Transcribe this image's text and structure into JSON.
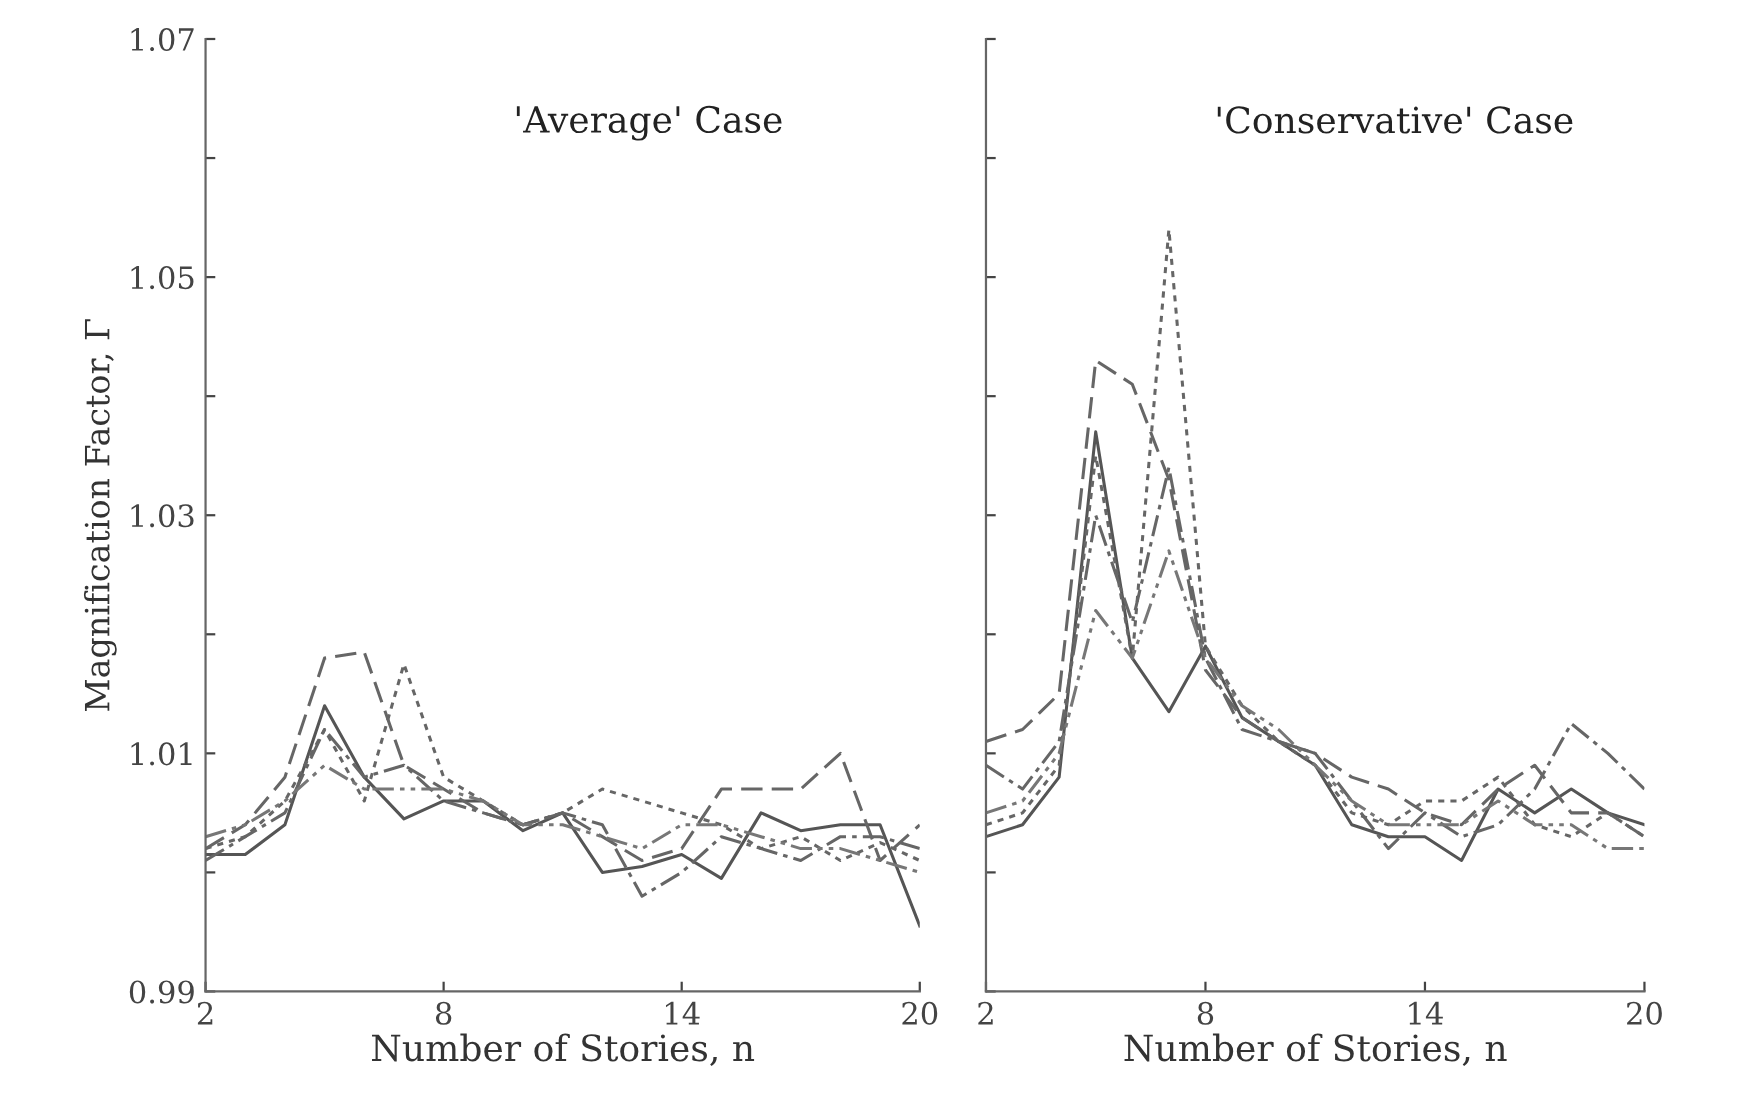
{
  "chart_data": [
    {
      "type": "line",
      "ylabel": "Magnification Factor, Γ",
      "xlabel": "Number of Stories, n",
      "annotations": [
        "'Average' Case"
      ],
      "x": [
        2,
        3,
        4,
        5,
        6,
        7,
        8,
        9,
        10,
        11,
        12,
        13,
        14,
        15,
        16,
        17,
        18,
        19,
        20
      ],
      "xlim": [
        2,
        20
      ],
      "xticks": [
        2,
        8,
        14,
        20
      ],
      "ylim": [
        0.99,
        1.07
      ],
      "yticks": [
        0.99,
        {
          "value": 1.0,
          "label": null
        },
        1.01,
        {
          "value": 1.02,
          "label": null
        },
        1.03,
        {
          "value": 1.04,
          "label": null
        },
        1.05,
        {
          "value": 1.06,
          "label": null
        },
        1.07
      ],
      "grid": false,
      "marker": "none",
      "series": [
        {
          "color": "#555555",
          "line_style": "solid",
          "values": [
            1.0015,
            1.0015,
            1.004,
            1.014,
            1.008,
            1.0045,
            1.006,
            1.006,
            1.0035,
            1.005,
            1.0,
            1.0005,
            1.0015,
            0.9995,
            1.005,
            1.0035,
            1.004,
            1.004,
            0.9955
          ]
        },
        {
          "color": "#666666",
          "line_style": "dotted",
          "values": [
            1.002,
            1.003,
            1.006,
            1.012,
            1.006,
            1.0175,
            1.008,
            1.006,
            1.004,
            1.005,
            1.007,
            1.006,
            1.005,
            1.004,
            1.002,
            1.003,
            1.001,
            1.0025,
            1.001
          ]
        },
        {
          "color": "#666666",
          "line_style": "dashed",
          "values": [
            1.002,
            1.004,
            1.008,
            1.018,
            1.0185,
            1.009,
            1.007,
            1.005,
            1.004,
            1.005,
            1.003,
            1.001,
            1.002,
            1.007,
            1.007,
            1.007,
            1.01,
            1.001,
            1.004
          ]
        },
        {
          "color": "#666666",
          "line_style": "dashdot",
          "values": [
            1.001,
            1.003,
            1.005,
            1.012,
            1.008,
            1.009,
            1.006,
            1.005,
            1.004,
            1.005,
            1.004,
            0.998,
            1.0,
            1.003,
            1.002,
            1.001,
            1.003,
            1.003,
            1.002
          ]
        },
        {
          "color": "#777777",
          "line_style": "dashdotdot",
          "values": [
            1.003,
            1.004,
            1.006,
            1.009,
            1.007,
            1.007,
            1.007,
            1.006,
            1.004,
            1.004,
            1.003,
            1.002,
            1.004,
            1.004,
            1.003,
            1.002,
            1.002,
            1.001,
            1.0
          ]
        }
      ]
    },
    {
      "type": "line",
      "xlabel": "Number of Stories, n",
      "annotations": [
        "'Conservative' Case"
      ],
      "x": [
        2,
        3,
        4,
        5,
        6,
        7,
        8,
        9,
        10,
        11,
        12,
        13,
        14,
        15,
        16,
        17,
        18,
        19,
        20
      ],
      "xlim": [
        2,
        20
      ],
      "xticks": [
        2,
        8,
        14,
        20
      ],
      "ylim": [
        0.99,
        1.07
      ],
      "yticks": [
        0.99,
        {
          "value": 1.0,
          "label": null
        },
        1.01,
        {
          "value": 1.02,
          "label": null
        },
        1.03,
        {
          "value": 1.04,
          "label": null
        },
        1.05,
        {
          "value": 1.06,
          "label": null
        },
        1.07
      ],
      "tick_labels": "x",
      "grid": false,
      "marker": "none",
      "series": [
        {
          "color": "#555555",
          "line_style": "solid",
          "values": [
            1.003,
            1.004,
            1.008,
            1.037,
            1.018,
            1.0135,
            1.019,
            1.013,
            1.011,
            1.009,
            1.004,
            1.003,
            1.003,
            1.001,
            1.007,
            1.005,
            1.007,
            1.005,
            1.004
          ]
        },
        {
          "color": "#666666",
          "line_style": "dotted",
          "values": [
            1.004,
            1.005,
            1.009,
            1.035,
            1.018,
            1.054,
            1.019,
            1.014,
            1.011,
            1.009,
            1.005,
            1.004,
            1.006,
            1.006,
            1.008,
            1.004,
            1.003,
            1.005,
            1.003
          ]
        },
        {
          "color": "#666666",
          "line_style": "dashed",
          "values": [
            1.011,
            1.012,
            1.015,
            1.043,
            1.041,
            1.033,
            1.017,
            1.013,
            1.011,
            1.01,
            1.008,
            1.007,
            1.005,
            1.004,
            1.007,
            1.009,
            1.005,
            1.005,
            1.003
          ]
        },
        {
          "color": "#666666",
          "line_style": "dashdot",
          "values": [
            1.009,
            1.007,
            1.011,
            1.03,
            1.021,
            1.034,
            1.018,
            1.012,
            1.011,
            1.01,
            1.006,
            1.002,
            1.005,
            1.003,
            1.004,
            1.007,
            1.0125,
            1.01,
            1.007
          ]
        },
        {
          "color": "#777777",
          "line_style": "dashdotdot",
          "values": [
            1.005,
            1.006,
            1.01,
            1.022,
            1.018,
            1.027,
            1.018,
            1.014,
            1.012,
            1.009,
            1.006,
            1.004,
            1.004,
            1.004,
            1.006,
            1.004,
            1.004,
            1.002,
            1.002
          ]
        }
      ]
    }
  ]
}
